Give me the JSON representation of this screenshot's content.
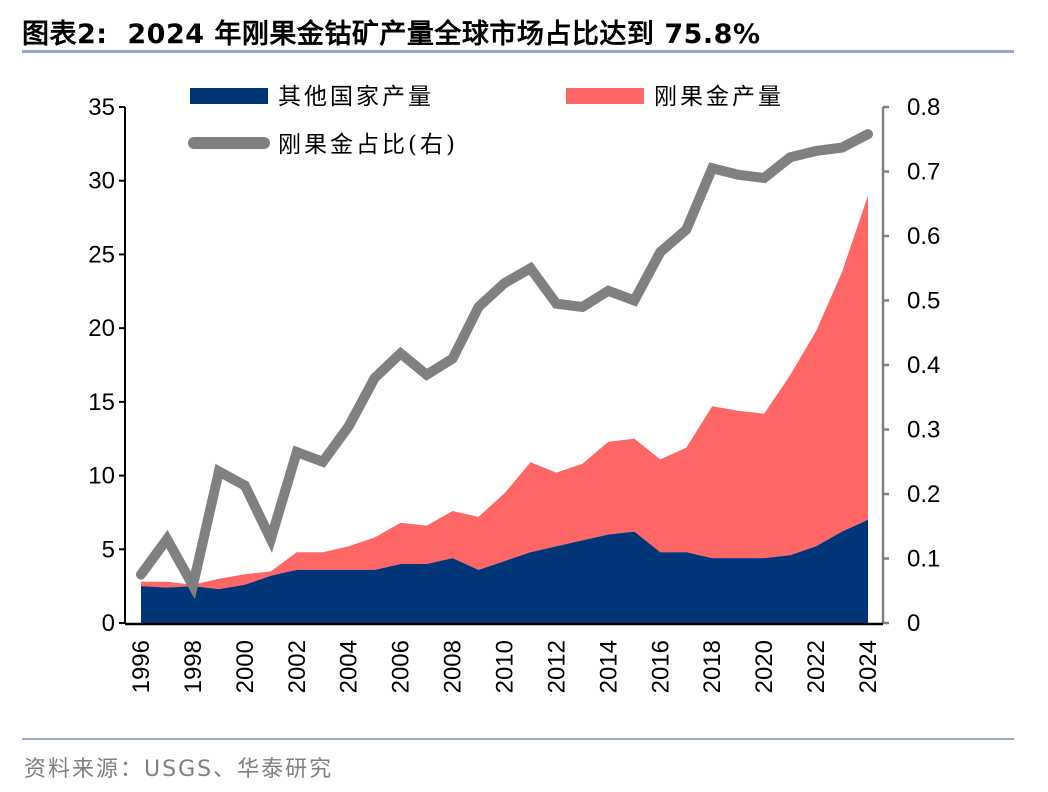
{
  "header": {
    "title": "图表2:  2024 年刚果金钴矿产量全球市场占比达到 75.8%"
  },
  "footer": {
    "source": "资料来源：USGS、华泰研究"
  },
  "colors": {
    "other": "#003678",
    "drc": "#ff6666",
    "ratio": "#808080",
    "rule": "#97a9c4"
  },
  "chart_data": {
    "type": "area",
    "title": "2024 年刚果金钴矿产量全球市场占比达到 75.8%",
    "xlabel": "",
    "ylabel": "",
    "y2label": "",
    "x": [
      1996,
      1997,
      1998,
      1999,
      2000,
      2001,
      2002,
      2003,
      2004,
      2005,
      2006,
      2007,
      2008,
      2009,
      2010,
      2011,
      2012,
      2013,
      2014,
      2015,
      2016,
      2017,
      2018,
      2019,
      2020,
      2021,
      2022,
      2023,
      2024
    ],
    "x_tick_labels": [
      "1996",
      "1998",
      "2000",
      "2002",
      "2004",
      "2006",
      "2008",
      "2010",
      "2012",
      "2014",
      "2016",
      "2018",
      "2020",
      "2022",
      "2024"
    ],
    "ylim": [
      0,
      35
    ],
    "y_ticks": [
      "0",
      "5",
      "10",
      "15",
      "20",
      "25",
      "30",
      "35"
    ],
    "y2lim": [
      0,
      0.8
    ],
    "y2_ticks": [
      "0",
      "0.1",
      "0.2",
      "0.3",
      "0.4",
      "0.5",
      "0.6",
      "0.7",
      "0.8"
    ],
    "stacked": true,
    "legend_position": "top",
    "series": [
      {
        "name": "其他国家产量",
        "type": "area",
        "axis": "left",
        "values": [
          2.5,
          2.4,
          2.5,
          2.3,
          2.6,
          3.2,
          3.6,
          3.6,
          3.6,
          3.6,
          4.0,
          4.0,
          4.4,
          3.6,
          4.2,
          4.8,
          5.2,
          5.6,
          6.0,
          6.2,
          4.8,
          4.8,
          4.4,
          4.4,
          4.4,
          4.6,
          5.2,
          6.2,
          7.0
        ]
      },
      {
        "name": "刚果金产量",
        "type": "area",
        "axis": "left",
        "values": [
          0.3,
          0.4,
          0.1,
          0.7,
          0.7,
          0.3,
          1.2,
          1.2,
          1.6,
          2.2,
          2.8,
          2.6,
          3.2,
          3.6,
          4.6,
          6.1,
          5.0,
          5.2,
          6.3,
          6.3,
          6.3,
          7.1,
          10.3,
          10.0,
          9.8,
          12.2,
          14.6,
          17.6,
          22.0
        ]
      },
      {
        "name": "刚果金占比(右)",
        "type": "line",
        "axis": "right",
        "values": [
          0.075,
          0.13,
          0.058,
          0.235,
          0.213,
          0.13,
          0.265,
          0.25,
          0.305,
          0.38,
          0.418,
          0.385,
          0.41,
          0.49,
          0.527,
          0.55,
          0.495,
          0.49,
          0.515,
          0.5,
          0.575,
          0.61,
          0.705,
          0.695,
          0.69,
          0.722,
          0.732,
          0.737,
          0.758
        ]
      }
    ]
  }
}
